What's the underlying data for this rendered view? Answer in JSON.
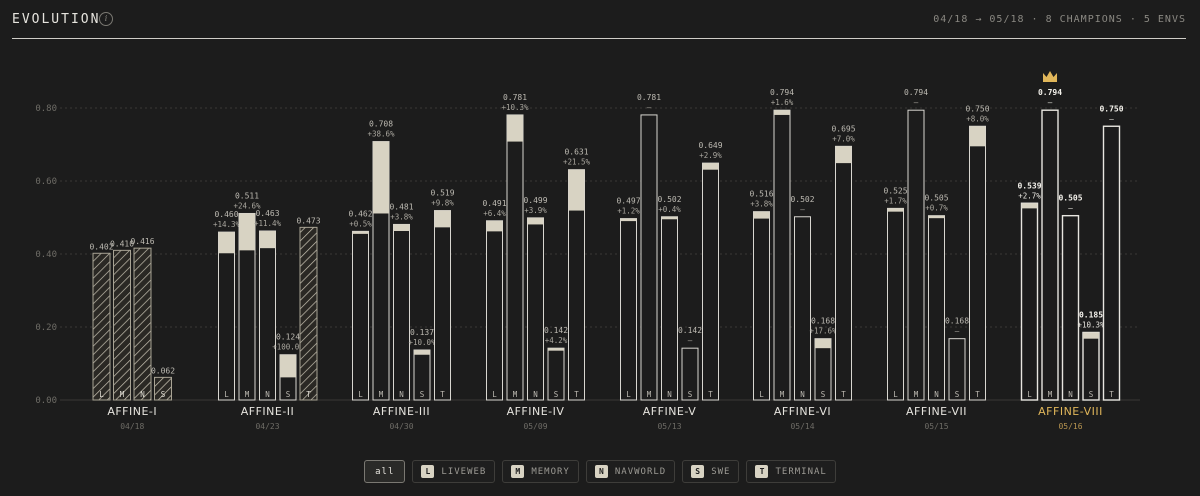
{
  "header": {
    "title": "EVOLUTION",
    "info_icon": "info-icon",
    "meta": "04/18 → 05/18 · 8 CHAMPIONS · 5 ENVS"
  },
  "legend": {
    "all_label": "all",
    "items": [
      {
        "key": "L",
        "label": "LIVEWEB"
      },
      {
        "key": "M",
        "label": "MEMORY"
      },
      {
        "key": "N",
        "label": "NAVWORLD"
      },
      {
        "key": "S",
        "label": "SWE"
      },
      {
        "key": "T",
        "label": "TERMINAL"
      }
    ]
  },
  "chart_data": {
    "type": "bar",
    "ylim": [
      0,
      0.8
    ],
    "yticks": [
      "0.00",
      "0.20",
      "0.40",
      "0.60",
      "0.80"
    ],
    "grid": true,
    "colors": {
      "improvement": "#d8d3c3",
      "outline": "#d8d6d0",
      "hatch": "#c9c4b4",
      "highlight": "#e0b65a",
      "crown": "#e0b65a"
    },
    "champions": [
      {
        "name": "AFFINE-I",
        "date": "04/18",
        "initial": true,
        "bars": [
          {
            "env": "L",
            "value": 0.402,
            "label": "0.402"
          },
          {
            "env": "M",
            "value": 0.41,
            "label": "0.410"
          },
          {
            "env": "N",
            "value": 0.416,
            "label": "0.416"
          },
          {
            "env": "S",
            "value": 0.062,
            "label": "0.062"
          }
        ]
      },
      {
        "name": "AFFINE-II",
        "date": "04/23",
        "bars": [
          {
            "env": "L",
            "value": 0.46,
            "prev": 0.402,
            "label": "0.460",
            "delta": "+14.3%"
          },
          {
            "env": "M",
            "value": 0.511,
            "prev": 0.41,
            "label": "0.511",
            "delta": "+24.6%"
          },
          {
            "env": "N",
            "value": 0.463,
            "prev": 0.416,
            "label": "0.463",
            "delta": "+11.4%"
          },
          {
            "env": "S",
            "value": 0.124,
            "prev": 0.062,
            "label": "0.124",
            "delta": "+100.0%"
          },
          {
            "env": "T",
            "value": 0.473,
            "label": "0.473",
            "new": true
          }
        ]
      },
      {
        "name": "AFFINE-III",
        "date": "04/30",
        "bars": [
          {
            "env": "L",
            "value": 0.462,
            "prev": 0.46,
            "label": "0.462",
            "delta": "+0.5%"
          },
          {
            "env": "M",
            "value": 0.708,
            "prev": 0.511,
            "label": "0.708",
            "delta": "+38.6%"
          },
          {
            "env": "N",
            "value": 0.481,
            "prev": 0.463,
            "label": "0.481",
            "delta": "+3.8%"
          },
          {
            "env": "S",
            "value": 0.137,
            "prev": 0.124,
            "label": "0.137",
            "delta": "+10.0%"
          },
          {
            "env": "T",
            "value": 0.519,
            "prev": 0.473,
            "label": "0.519",
            "delta": "+9.8%"
          }
        ]
      },
      {
        "name": "AFFINE-IV",
        "date": "05/09",
        "bars": [
          {
            "env": "L",
            "value": 0.491,
            "prev": 0.462,
            "label": "0.491",
            "delta": "+6.4%"
          },
          {
            "env": "M",
            "value": 0.781,
            "prev": 0.708,
            "label": "0.781",
            "delta": "+10.3%"
          },
          {
            "env": "N",
            "value": 0.499,
            "prev": 0.481,
            "label": "0.499",
            "delta": "+3.9%"
          },
          {
            "env": "S",
            "value": 0.142,
            "prev": 0.137,
            "label": "0.142",
            "delta": "+4.2%"
          },
          {
            "env": "T",
            "value": 0.631,
            "prev": 0.519,
            "label": "0.631",
            "delta": "+21.5%"
          }
        ]
      },
      {
        "name": "AFFINE-V",
        "date": "05/13",
        "bars": [
          {
            "env": "L",
            "value": 0.497,
            "prev": 0.491,
            "label": "0.497",
            "delta": "+1.2%"
          },
          {
            "env": "M",
            "value": 0.781,
            "label": "0.781",
            "delta": "—"
          },
          {
            "env": "N",
            "value": 0.502,
            "prev": 0.499,
            "label": "0.502",
            "delta": "+0.4%"
          },
          {
            "env": "S",
            "value": 0.142,
            "label": "0.142",
            "delta": "—"
          },
          {
            "env": "T",
            "value": 0.649,
            "prev": 0.631,
            "label": "0.649",
            "delta": "+2.9%"
          }
        ]
      },
      {
        "name": "AFFINE-VI",
        "date": "05/14",
        "bars": [
          {
            "env": "L",
            "value": 0.516,
            "prev": 0.497,
            "label": "0.516",
            "delta": "+3.8%"
          },
          {
            "env": "M",
            "value": 0.794,
            "prev": 0.781,
            "label": "0.794",
            "delta": "+1.6%"
          },
          {
            "env": "N",
            "value": 0.502,
            "label": "0.502",
            "delta": "—"
          },
          {
            "env": "S",
            "value": 0.168,
            "prev": 0.142,
            "label": "0.168",
            "delta": "+17.6%"
          },
          {
            "env": "T",
            "value": 0.695,
            "prev": 0.649,
            "label": "0.695",
            "delta": "+7.0%"
          }
        ]
      },
      {
        "name": "AFFINE-VII",
        "date": "05/15",
        "bars": [
          {
            "env": "L",
            "value": 0.525,
            "prev": 0.516,
            "label": "0.525",
            "delta": "+1.7%"
          },
          {
            "env": "M",
            "value": 0.794,
            "label": "0.794",
            "delta": "—"
          },
          {
            "env": "N",
            "value": 0.505,
            "prev": 0.502,
            "label": "0.505",
            "delta": "+0.7%"
          },
          {
            "env": "S",
            "value": 0.168,
            "label": "0.168",
            "delta": "—"
          },
          {
            "env": "T",
            "value": 0.75,
            "prev": 0.695,
            "label": "0.750",
            "delta": "+8.0%"
          }
        ]
      },
      {
        "name": "AFFINE-VIII",
        "date": "05/16",
        "highlight": true,
        "crown": "crown-icon",
        "bars": [
          {
            "env": "L",
            "value": 0.539,
            "prev": 0.525,
            "label": "0.539",
            "delta": "+2.7%"
          },
          {
            "env": "M",
            "value": 0.794,
            "label": "0.794",
            "delta": "—"
          },
          {
            "env": "N",
            "value": 0.505,
            "label": "0.505",
            "delta": "—"
          },
          {
            "env": "S",
            "value": 0.185,
            "prev": 0.168,
            "label": "0.185",
            "delta": "+10.3%"
          },
          {
            "env": "T",
            "value": 0.75,
            "label": "0.750",
            "delta": "—"
          }
        ]
      }
    ]
  }
}
